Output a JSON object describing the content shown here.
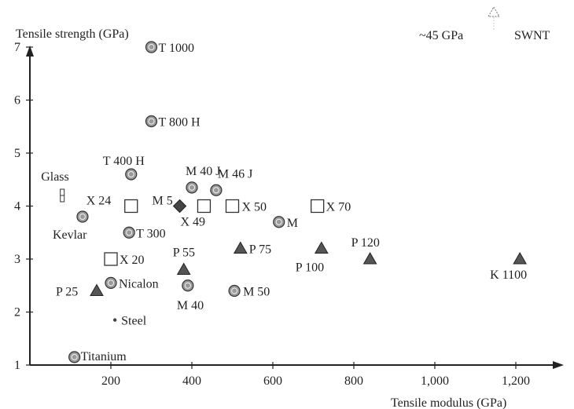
{
  "chart_data": {
    "type": "scatter",
    "title": "",
    "xlabel": "Tensile modulus (GPa)",
    "ylabel": "Tensile strength (GPa)",
    "xlim": [
      0,
      1300
    ],
    "ylim": [
      1,
      7.9
    ],
    "x_tick_labels": [
      "200",
      "400",
      "600",
      "800",
      "1,000",
      "1,200"
    ],
    "x_tick_values": [
      200,
      400,
      600,
      800,
      1000,
      1200
    ],
    "y_tick_labels": [
      "1",
      "2",
      "3",
      "4",
      "5",
      "6",
      "7"
    ],
    "y_tick_values": [
      1,
      2,
      3,
      4,
      5,
      6,
      7
    ],
    "grid": false,
    "annotation": {
      "text": "~45 GPa",
      "label": "SWNT"
    },
    "points": [
      {
        "label": "T 1000",
        "x": 300,
        "y": 7.0,
        "marker": "circle"
      },
      {
        "label": "T 800 H",
        "x": 300,
        "y": 5.6,
        "marker": "circle"
      },
      {
        "label": "T 400 H",
        "x": 250,
        "y": 4.6,
        "marker": "circle"
      },
      {
        "label": "Glass",
        "x": 80,
        "y": 4.2,
        "marker": "glass"
      },
      {
        "label": "X 24",
        "x": 250,
        "y": 4.0,
        "marker": "square"
      },
      {
        "label": "M 5",
        "x": 370,
        "y": 4.0,
        "marker": "diamond"
      },
      {
        "label": "M 40 J",
        "x": 400,
        "y": 4.35,
        "marker": "circle"
      },
      {
        "label": "M 46 J",
        "x": 460,
        "y": 4.3,
        "marker": "circle"
      },
      {
        "label": "X 49",
        "x": 430,
        "y": 4.0,
        "marker": "square"
      },
      {
        "label": "X 50",
        "x": 500,
        "y": 4.0,
        "marker": "square"
      },
      {
        "label": "X 70",
        "x": 710,
        "y": 4.0,
        "marker": "square"
      },
      {
        "label": "M",
        "x": 615,
        "y": 3.7,
        "marker": "circle"
      },
      {
        "label": "Kevlar",
        "x": 130,
        "y": 3.8,
        "marker": "circle"
      },
      {
        "label": "T 300",
        "x": 245,
        "y": 3.5,
        "marker": "circle"
      },
      {
        "label": "X 20",
        "x": 200,
        "y": 3.0,
        "marker": "square"
      },
      {
        "label": "P 55",
        "x": 380,
        "y": 2.8,
        "marker": "triangle"
      },
      {
        "label": "P 75",
        "x": 520,
        "y": 3.2,
        "marker": "triangle"
      },
      {
        "label": "P 100",
        "x": 720,
        "y": 3.2,
        "marker": "triangle"
      },
      {
        "label": "P 120",
        "x": 840,
        "y": 3.0,
        "marker": "triangle"
      },
      {
        "label": "K 1100",
        "x": 1210,
        "y": 3.0,
        "marker": "triangle"
      },
      {
        "label": "P 25",
        "x": 165,
        "y": 2.4,
        "marker": "triangle"
      },
      {
        "label": "Nicalon",
        "x": 200,
        "y": 2.55,
        "marker": "circle"
      },
      {
        "label": "M 40",
        "x": 390,
        "y": 2.5,
        "marker": "circle"
      },
      {
        "label": "M 50",
        "x": 505,
        "y": 2.4,
        "marker": "circle"
      },
      {
        "label": "Steel",
        "x": 210,
        "y": 1.85,
        "marker": "dot"
      },
      {
        "label": "Titanium",
        "x": 110,
        "y": 1.15,
        "marker": "circle"
      }
    ]
  }
}
